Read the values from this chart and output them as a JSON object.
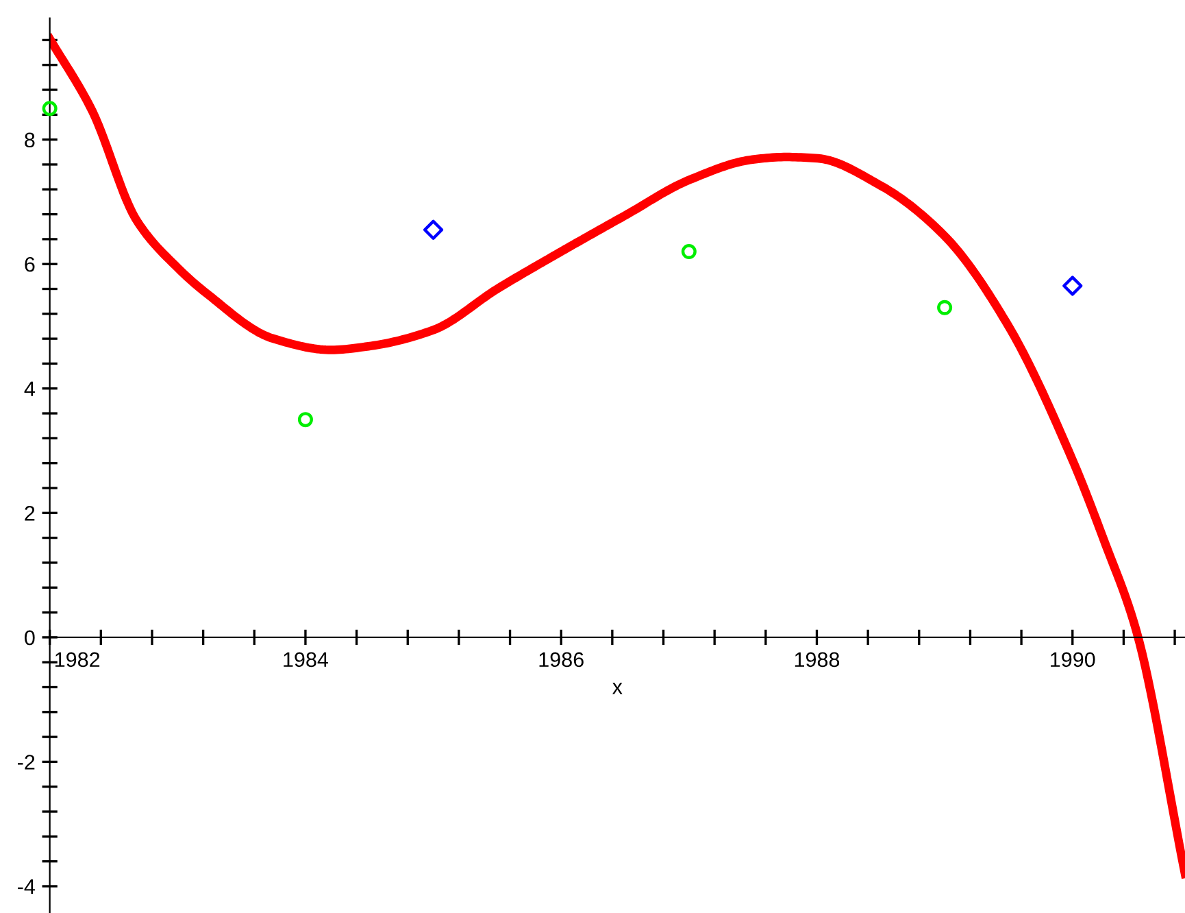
{
  "chart_data": {
    "type": "line",
    "xlabel": "x",
    "xlim": [
      1982,
      1990.88
    ],
    "ylim": [
      -4.43,
      9.95
    ],
    "xticks": [
      1982,
      {
        "value": 1982.4,
        "label": null
      },
      {
        "value": 1982.8,
        "label": null
      },
      {
        "value": 1983.2,
        "label": null
      },
      {
        "value": 1983.6,
        "label": null
      },
      1984,
      {
        "value": 1984.4,
        "label": null
      },
      {
        "value": 1984.8,
        "label": null
      },
      {
        "value": 1985.2,
        "label": null
      },
      {
        "value": 1985.6,
        "label": null
      },
      1986,
      {
        "value": 1986.4,
        "label": null
      },
      {
        "value": 1986.8,
        "label": null
      },
      {
        "value": 1987.2,
        "label": null
      },
      {
        "value": 1987.6,
        "label": null
      },
      1988,
      {
        "value": 1988.4,
        "label": null
      },
      {
        "value": 1988.8,
        "label": null
      },
      {
        "value": 1989.2,
        "label": null
      },
      {
        "value": 1989.6,
        "label": null
      },
      1990,
      {
        "value": 1990.4,
        "label": null
      },
      {
        "value": 1990.8,
        "label": null
      }
    ],
    "yticks": [
      -4,
      {
        "value": -3.6,
        "label": null
      },
      {
        "value": -3.2,
        "label": null
      },
      {
        "value": -2.8,
        "label": null
      },
      {
        "value": -2.4,
        "label": null
      },
      -2,
      {
        "value": -1.6,
        "label": null
      },
      {
        "value": -1.2,
        "label": null
      },
      {
        "value": -0.8,
        "label": null
      },
      {
        "value": -0.4,
        "label": null
      },
      0,
      {
        "value": 0.4,
        "label": null
      },
      {
        "value": 0.8,
        "label": null
      },
      {
        "value": 1.2,
        "label": null
      },
      {
        "value": 1.6,
        "label": null
      },
      2,
      {
        "value": 2.4,
        "label": null
      },
      {
        "value": 2.8,
        "label": null
      },
      {
        "value": 3.2,
        "label": null
      },
      {
        "value": 3.6,
        "label": null
      },
      4,
      {
        "value": 4.4,
        "label": null
      },
      {
        "value": 4.8,
        "label": null
      },
      {
        "value": 5.2,
        "label": null
      },
      {
        "value": 5.6,
        "label": null
      },
      6,
      {
        "value": 6.4,
        "label": null
      },
      {
        "value": 6.8,
        "label": null
      },
      {
        "value": 7.2,
        "label": null
      },
      {
        "value": 7.6,
        "label": null
      },
      8,
      {
        "value": 8.4,
        "label": null
      },
      {
        "value": 8.8,
        "label": null
      },
      {
        "value": 9.2,
        "label": null
      },
      {
        "value": 9.6,
        "label": null
      }
    ],
    "grid": false,
    "series": [
      {
        "color": "#ff0000",
        "marker": "none",
        "line_style": "solid",
        "x": [
          1982,
          1982.33,
          1982.68,
          1983,
          1983.22,
          1983.75,
          1984.2,
          1984.5,
          1985,
          1985.5,
          1986,
          1986.5,
          1987,
          1987.5,
          1987.75,
          1988,
          1988.5,
          1989,
          1989.5,
          1990,
          1990.25,
          1990.5,
          1990.88
        ],
        "values": [
          9.62,
          8.47,
          6.7,
          5.94,
          5.54,
          4.8,
          4.62,
          4.68,
          4.94,
          5.6,
          6.2,
          6.78,
          7.35,
          7.68,
          7.72,
          7.7,
          7.26,
          6.45,
          5.0,
          2.85,
          1.54,
          0.1,
          -3.8
        ]
      },
      {
        "type": "scatter",
        "color": "#00ee00",
        "marker": "circle",
        "x": [
          1982,
          1984,
          1987,
          1989
        ],
        "values": [
          8.5,
          3.5,
          6.2,
          5.3
        ]
      },
      {
        "type": "scatter",
        "color": "#0000ff",
        "marker": "diamond",
        "x": [
          1985,
          1990
        ],
        "values": [
          6.55,
          5.65
        ]
      }
    ]
  }
}
